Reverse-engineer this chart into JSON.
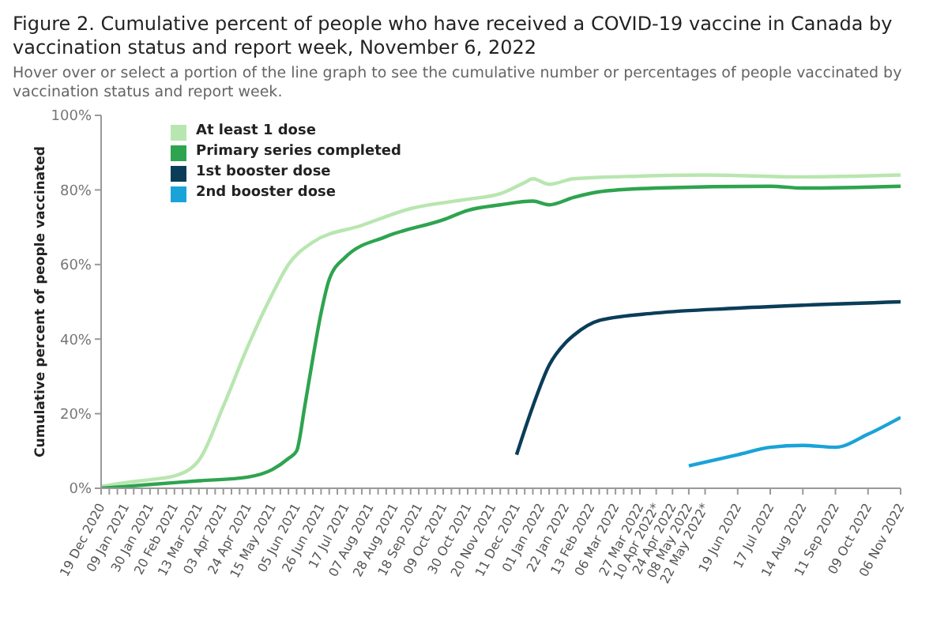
{
  "chart_data": {
    "type": "line",
    "title": "Figure 2. Cumulative percent of people who have received a COVID-19 vaccine in Canada by vaccination status and report week, November 6, 2022",
    "subtitle": "Hover over or select a portion of the line graph to see the cumulative number or percentages of people vaccinated by vaccination status and report week.",
    "ylabel": "Cumulative percent of people vaccinated",
    "series": [
      {
        "name": "At least 1 dose",
        "color": "#b8e6b0",
        "x": [
          "2020-12-19",
          "2021-01-09",
          "2021-01-30",
          "2021-02-20",
          "2021-03-13",
          "2021-04-03",
          "2021-04-24",
          "2021-05-15",
          "2021-05-29",
          "2021-06-19",
          "2021-07-31",
          "2021-09-11",
          "2021-10-30",
          "2021-11-27",
          "2021-12-18",
          "2021-12-25",
          "2022-01-08",
          "2022-01-29",
          "2022-03-27",
          "2022-05-22",
          "2022-08-14",
          "2022-11-06"
        ],
        "values": [
          0.5,
          1.5,
          2.3,
          3.3,
          7.5,
          22,
          38,
          52,
          60,
          66,
          70.5,
          75,
          77.5,
          79,
          82,
          83,
          81.5,
          83,
          83.7,
          84,
          83.5,
          84
        ]
      },
      {
        "name": "Primary series completed",
        "color": "#2ea44f",
        "x": [
          "2020-12-19",
          "2021-01-30",
          "2021-03-13",
          "2021-04-24",
          "2021-05-15",
          "2021-05-29",
          "2021-06-05",
          "2021-06-12",
          "2021-06-19",
          "2021-06-26",
          "2021-07-03",
          "2021-07-17",
          "2021-08-21",
          "2021-10-09",
          "2021-10-30",
          "2021-11-27",
          "2021-12-25",
          "2022-01-08",
          "2022-01-29",
          "2022-02-20",
          "2022-04-10",
          "2022-07-17",
          "2022-08-14",
          "2022-11-06"
        ],
        "values": [
          0,
          1,
          2,
          3,
          5,
          8,
          10,
          22,
          35,
          47,
          56,
          62,
          67.5,
          72,
          74.5,
          76,
          77,
          76,
          78,
          79.5,
          80.5,
          81,
          80.5,
          81
        ]
      },
      {
        "name": "1st booster dose",
        "color": "#0b3d59",
        "x": [
          "2021-12-11",
          "2021-12-25",
          "2022-01-08",
          "2022-01-22",
          "2022-01-29",
          "2022-02-20",
          "2022-04-10",
          "2022-06-19",
          "2022-11-06"
        ],
        "values": [
          9,
          22,
          33,
          39,
          41,
          45,
          47,
          48.3,
          50
        ]
      },
      {
        "name": "2nd booster dose",
        "color": "#1aa3d8",
        "x": [
          "2022-05-08",
          "2022-06-19",
          "2022-07-17",
          "2022-08-14",
          "2022-09-11",
          "2022-10-09",
          "2022-11-06"
        ],
        "values": [
          6,
          9,
          11,
          11.5,
          11,
          14.5,
          19
        ]
      }
    ],
    "xlim": [
      "2020-12-19",
      "2022-11-06"
    ],
    "xticks": [
      {
        "value": "2020-12-19",
        "label": "19 Dec 2020"
      },
      {
        "value": "2020-12-26",
        "label": null
      },
      {
        "value": "2021-01-02",
        "label": null
      },
      {
        "value": "2021-01-09",
        "label": "09 Jan 2021"
      },
      {
        "value": "2021-01-16",
        "label": null
      },
      {
        "value": "2021-01-23",
        "label": null
      },
      {
        "value": "2021-01-30",
        "label": "30 Jan 2021"
      },
      {
        "value": "2021-02-06",
        "label": null
      },
      {
        "value": "2021-02-13",
        "label": null
      },
      {
        "value": "2021-02-20",
        "label": "20 Feb 2021"
      },
      {
        "value": "2021-02-27",
        "label": null
      },
      {
        "value": "2021-03-06",
        "label": null
      },
      {
        "value": "2021-03-13",
        "label": "13 Mar 2021"
      },
      {
        "value": "2021-03-20",
        "label": null
      },
      {
        "value": "2021-03-27",
        "label": null
      },
      {
        "value": "2021-04-03",
        "label": "03 Apr 2021"
      },
      {
        "value": "2021-04-10",
        "label": null
      },
      {
        "value": "2021-04-17",
        "label": null
      },
      {
        "value": "2021-04-24",
        "label": "24 Apr 2021"
      },
      {
        "value": "2021-05-01",
        "label": null
      },
      {
        "value": "2021-05-08",
        "label": null
      },
      {
        "value": "2021-05-15",
        "label": "15 May 2021"
      },
      {
        "value": "2021-05-22",
        "label": null
      },
      {
        "value": "2021-05-29",
        "label": null
      },
      {
        "value": "2021-06-05",
        "label": "05 Jun 2021"
      },
      {
        "value": "2021-06-12",
        "label": null
      },
      {
        "value": "2021-06-19",
        "label": null
      },
      {
        "value": "2021-06-26",
        "label": "26 Jun 2021"
      },
      {
        "value": "2021-07-03",
        "label": null
      },
      {
        "value": "2021-07-10",
        "label": null
      },
      {
        "value": "2021-07-17",
        "label": "17 Jul 2021"
      },
      {
        "value": "2021-07-24",
        "label": null
      },
      {
        "value": "2021-07-31",
        "label": null
      },
      {
        "value": "2021-08-07",
        "label": "07 Aug 2021"
      },
      {
        "value": "2021-08-14",
        "label": null
      },
      {
        "value": "2021-08-21",
        "label": null
      },
      {
        "value": "2021-08-28",
        "label": "28 Aug 2021"
      },
      {
        "value": "2021-09-04",
        "label": null
      },
      {
        "value": "2021-09-11",
        "label": null
      },
      {
        "value": "2021-09-18",
        "label": "18 Sep 2021"
      },
      {
        "value": "2021-09-25",
        "label": null
      },
      {
        "value": "2021-10-02",
        "label": null
      },
      {
        "value": "2021-10-09",
        "label": "09 Oct 2021"
      },
      {
        "value": "2021-10-16",
        "label": null
      },
      {
        "value": "2021-10-23",
        "label": null
      },
      {
        "value": "2021-10-30",
        "label": "30 Oct 2021"
      },
      {
        "value": "2021-11-06",
        "label": null
      },
      {
        "value": "2021-11-13",
        "label": null
      },
      {
        "value": "2021-11-20",
        "label": "20 Nov 2021"
      },
      {
        "value": "2021-11-27",
        "label": null
      },
      {
        "value": "2021-12-04",
        "label": null
      },
      {
        "value": "2021-12-11",
        "label": "11 Dec 2021"
      },
      {
        "value": "2021-12-18",
        "label": null
      },
      {
        "value": "2021-12-25",
        "label": null
      },
      {
        "value": "2022-01-01",
        "label": "01 Jan 2022"
      },
      {
        "value": "2022-01-08",
        "label": null
      },
      {
        "value": "2022-01-15",
        "label": null
      },
      {
        "value": "2022-01-22",
        "label": "22 Jan 2022"
      },
      {
        "value": "2022-01-29",
        "label": null
      },
      {
        "value": "2022-02-06",
        "label": null
      },
      {
        "value": "2022-02-13",
        "label": "13 Feb 2022"
      },
      {
        "value": "2022-02-20",
        "label": null
      },
      {
        "value": "2022-02-27",
        "label": null
      },
      {
        "value": "2022-03-06",
        "label": "06 Mar 2022"
      },
      {
        "value": "2022-03-13",
        "label": null
      },
      {
        "value": "2022-03-20",
        "label": null
      },
      {
        "value": "2022-03-27",
        "label": "27 Mar 2022"
      },
      {
        "value": "2022-04-10",
        "label": "10 Apr 2022*"
      },
      {
        "value": "2022-04-24",
        "label": "24 Apr 2022"
      },
      {
        "value": "2022-05-08",
        "label": "08 May 2022"
      },
      {
        "value": "2022-05-22",
        "label": "22 May 2022*"
      },
      {
        "value": "2022-06-19",
        "label": "19 Jun 2022"
      },
      {
        "value": "2022-07-17",
        "label": "17 Jul 2022"
      },
      {
        "value": "2022-08-14",
        "label": "14 Aug 2022"
      },
      {
        "value": "2022-09-11",
        "label": "11 Sep 2022"
      },
      {
        "value": "2022-10-09",
        "label": "09 Oct 2022"
      },
      {
        "value": "2022-11-06",
        "label": "06 Nov 2022"
      }
    ],
    "ylim": [
      0,
      100
    ],
    "yticks": [
      {
        "value": 0,
        "label": "0%"
      },
      {
        "value": 20,
        "label": "20%"
      },
      {
        "value": 40,
        "label": "40%"
      },
      {
        "value": 60,
        "label": "60%"
      },
      {
        "value": 80,
        "label": "80%"
      },
      {
        "value": 100,
        "label": "100%"
      }
    ],
    "grid": false,
    "legend": "top left",
    "marker": "none",
    "line_style": "solid"
  }
}
